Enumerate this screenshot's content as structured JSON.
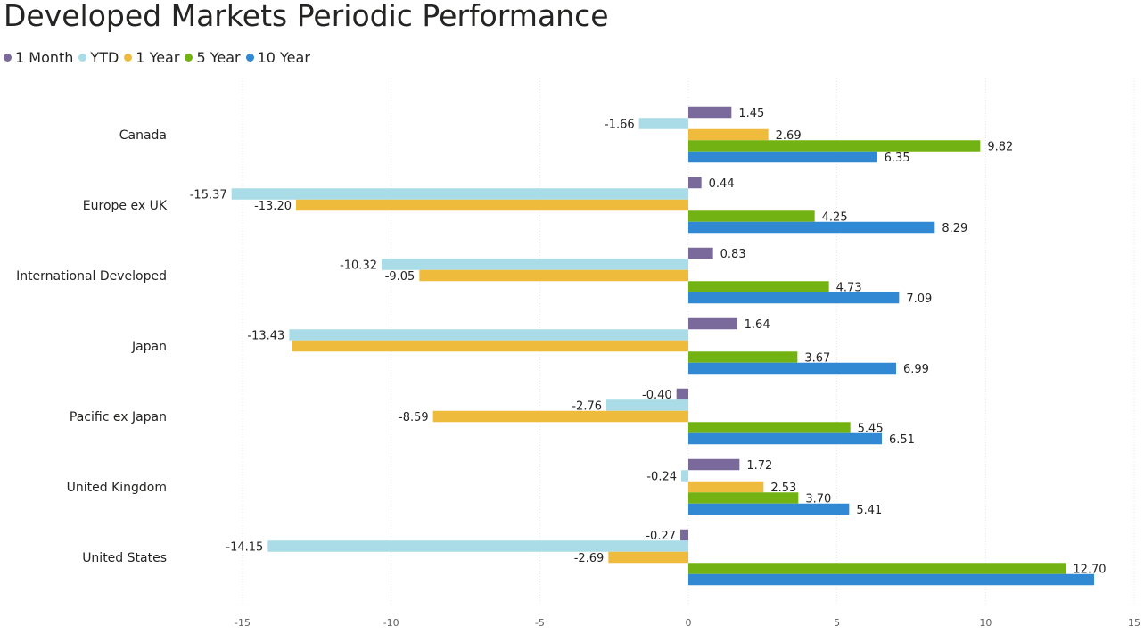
{
  "chart_data": {
    "type": "bar",
    "orientation": "horizontal",
    "title": "Developed Markets Periodic Performance",
    "categories": [
      "Canada",
      "Europe ex UK",
      "International Developed",
      "Japan",
      "Pacific ex Japan",
      "United Kingdom",
      "United States"
    ],
    "series": [
      {
        "name": "1 Month",
        "color": "#7a6a9c",
        "values": [
          1.45,
          0.44,
          0.83,
          1.64,
          -0.4,
          1.72,
          -0.27
        ],
        "labels": [
          "1.45",
          "0.44",
          "0.83",
          "1.64",
          "-0.40",
          "1.72",
          "-0.27"
        ]
      },
      {
        "name": "YTD",
        "color": "#a9dce6",
        "values": [
          -1.66,
          -15.37,
          -10.32,
          -13.43,
          -2.76,
          -0.24,
          -14.15
        ],
        "labels": [
          "-1.66",
          "-15.37",
          "-10.32",
          "-13.43",
          "-2.76",
          "-0.24",
          "-14.15"
        ]
      },
      {
        "name": "1 Year",
        "color": "#efbb3c",
        "values": [
          2.69,
          -13.2,
          -9.05,
          -13.35,
          -8.59,
          2.53,
          -2.69
        ],
        "labels": [
          "2.69",
          "-13.20",
          "-9.05",
          "",
          "-8.59",
          "2.53",
          "-2.69"
        ]
      },
      {
        "name": "5 Year",
        "color": "#72b313",
        "values": [
          9.82,
          4.25,
          4.73,
          3.67,
          5.45,
          3.7,
          12.7
        ],
        "labels": [
          "9.82",
          "4.25",
          "4.73",
          "3.67",
          "5.45",
          "3.70",
          "12.70"
        ]
      },
      {
        "name": "10 Year",
        "color": "#3188d3",
        "values": [
          6.35,
          8.29,
          7.09,
          6.99,
          6.51,
          5.41,
          13.65
        ],
        "labels": [
          "6.35",
          "8.29",
          "7.09",
          "6.99",
          "6.51",
          "5.41",
          ""
        ]
      }
    ],
    "xlim": [
      -15,
      15
    ],
    "xticks": [
      -15,
      -10,
      -5,
      0,
      5,
      10,
      15
    ],
    "xtick_labels": [
      "-15",
      "-10",
      "-5",
      "0",
      "5",
      "10",
      "15"
    ],
    "xlabel": "",
    "ylabel": "",
    "grid": true,
    "legend_position": "top-left"
  }
}
